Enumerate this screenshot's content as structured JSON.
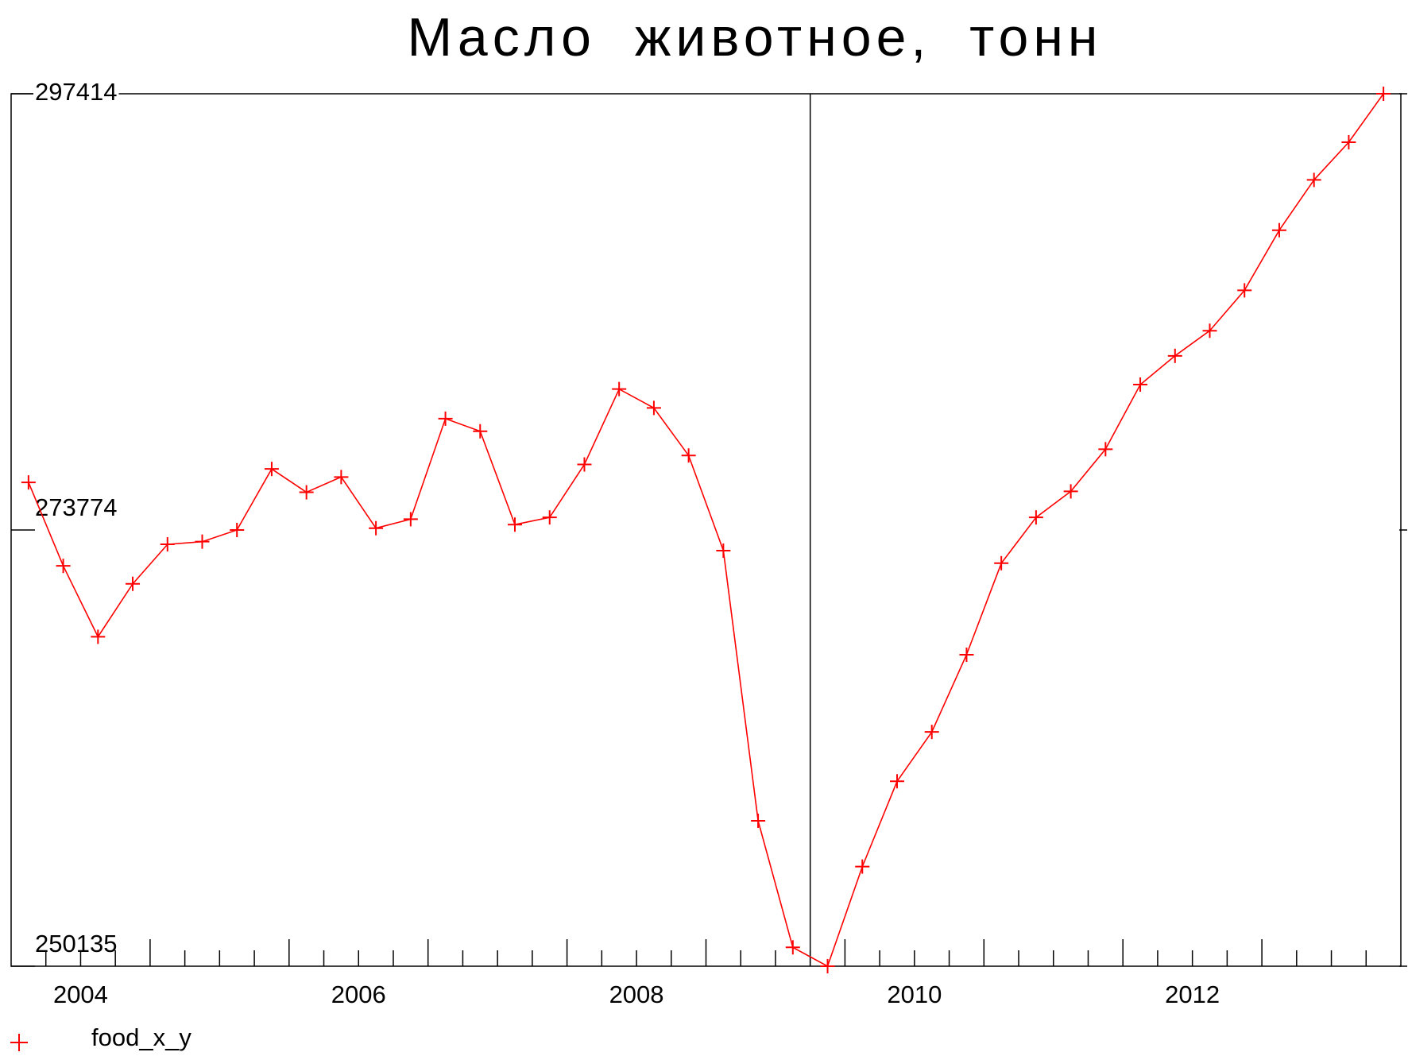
{
  "chart_data": {
    "type": "line",
    "title": "Масло животное, тонн",
    "x": [
      2004.125,
      2004.375,
      2004.625,
      2004.875,
      2005.125,
      2005.375,
      2005.625,
      2005.875,
      2006.125,
      2006.375,
      2006.625,
      2006.875,
      2007.125,
      2007.375,
      2007.625,
      2007.875,
      2008.125,
      2008.375,
      2008.625,
      2008.875,
      2009.125,
      2009.375,
      2009.625,
      2009.875,
      2010.125,
      2010.375,
      2010.625,
      2010.875,
      2011.125,
      2011.375,
      2011.625,
      2011.875,
      2012.125,
      2012.375,
      2012.625,
      2012.875,
      2013.125,
      2013.375,
      2013.625,
      2013.875
    ],
    "series": [
      {
        "name": "food_x_y",
        "color": "#ff0000",
        "marker": "+",
        "values": [
          276353,
          271829,
          267987,
          270857,
          272997,
          273143,
          273775,
          277082,
          275818,
          276645,
          273872,
          274359,
          279806,
          279125,
          274067,
          274456,
          277326,
          281411,
          280390,
          277812,
          272656,
          258016,
          251157,
          250135,
          255535,
          260156,
          262831,
          267014,
          271975,
          274456,
          275866,
          278153,
          281655,
          283211,
          284573,
          286762,
          290021,
          292745,
          294787,
          297414
        ]
      }
    ],
    "xlim": [
      2004,
      2014
    ],
    "xticks": [
      {
        "value": 2004.5,
        "label": "2004"
      },
      {
        "value": 2006.5,
        "label": "2006"
      },
      {
        "value": 2008.5,
        "label": "2008"
      },
      {
        "value": 2010.5,
        "label": "2010"
      },
      {
        "value": 2012.5,
        "label": "2012"
      }
    ],
    "xminorticks": [
      2004.25,
      2004.5,
      2004.75,
      2005,
      2005.25,
      2005.5,
      2005.75,
      2006,
      2006.25,
      2006.5,
      2006.75,
      2007,
      2007.25,
      2007.5,
      2007.75,
      2008,
      2008.25,
      2008.5,
      2008.75,
      2009,
      2009.25,
      2009.5,
      2009.75,
      2010,
      2010.25,
      2010.5,
      2010.75,
      2011,
      2011.25,
      2011.5,
      2011.75,
      2012,
      2012.25,
      2012.5,
      2012.75,
      2013,
      2013.25,
      2013.5,
      2013.75
    ],
    "vline": 2009.75,
    "ylim": [
      250135,
      297414
    ],
    "yticks": [
      250135,
      273774,
      297414
    ],
    "legend": "bottom-left"
  }
}
